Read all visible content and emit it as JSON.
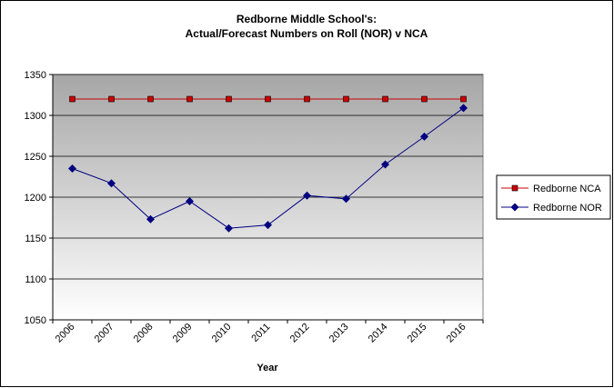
{
  "chart_data": {
    "type": "line",
    "title_line1": "Redborne Middle School's:",
    "title_line2": "Actual/Forecast Numbers on Roll (NOR) v NCA",
    "xlabel": "Year",
    "ylabel": "",
    "categories": [
      "2006",
      "2007",
      "2008",
      "2009",
      "2010",
      "2011",
      "2012",
      "2013",
      "2014",
      "2015",
      "2016"
    ],
    "ylim": [
      1050,
      1350
    ],
    "yticks": [
      1050,
      1100,
      1150,
      1200,
      1250,
      1300,
      1350
    ],
    "grid": true,
    "legend_position": "right",
    "series": [
      {
        "name": "Redborne NCA",
        "color": "#cc0000",
        "marker": "square",
        "values": [
          1320,
          1320,
          1320,
          1320,
          1320,
          1320,
          1320,
          1320,
          1320,
          1320,
          1320
        ]
      },
      {
        "name": "Redborne NOR",
        "color": "#000080",
        "marker": "diamond",
        "values": [
          1235,
          1217,
          1173,
          1195,
          1162,
          1166,
          1202,
          1198,
          1240,
          1274,
          1309
        ]
      }
    ],
    "colors": {
      "plot_top": "#a6a6a6",
      "plot_bottom": "#ffffff"
    }
  }
}
